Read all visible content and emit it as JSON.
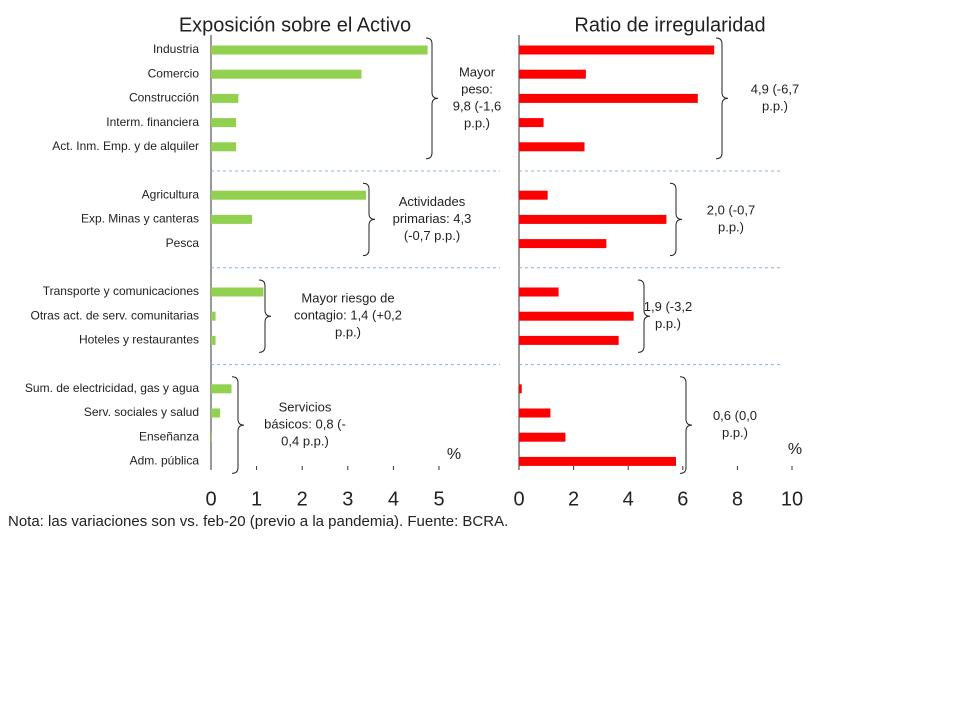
{
  "chart_data": [
    {
      "type": "bar",
      "orientation": "horizontal",
      "title": "Exposición sobre el Activo",
      "categories": [
        "Industria",
        "Comercio",
        "Construcción",
        "Interm. financiera",
        "Act. Inm. Emp. y de alquiler",
        "Agricultura",
        "Exp. Minas y canteras",
        "Pesca",
        "Transporte y comunicaciones",
        "Otras act. de serv. comunitarias",
        "Hoteles y restaurantes",
        "Sum. de electricidad, gas y agua",
        "Serv. sociales y salud",
        "Enseñanza",
        "Adm. pública"
      ],
      "values": [
        4.75,
        3.3,
        0.6,
        0.55,
        0.55,
        3.4,
        0.9,
        0,
        1.15,
        0.1,
        0.1,
        0.45,
        0.2,
        0.02,
        0
      ],
      "color": "#92d050",
      "xlim": [
        0,
        5
      ],
      "xticks": [
        0,
        1,
        2,
        3,
        4,
        5
      ],
      "unit": "%",
      "annotations": [
        [
          "Mayor",
          "peso:",
          "9,8 (-1,6",
          "p.p.)"
        ],
        [
          "Actividades",
          "primarias: 4,3",
          "(-0,7 p.p.)"
        ],
        [
          "Mayor riesgo de",
          "contagio: 1,4 (+0,2",
          "p.p.)"
        ],
        [
          "Servicios",
          "básicos: 0,8 (-",
          "0,4 p.p.)"
        ]
      ]
    },
    {
      "type": "bar",
      "orientation": "horizontal",
      "title": "Ratio de irregularidad",
      "values": [
        7.15,
        2.45,
        6.55,
        0.9,
        2.4,
        1.05,
        5.4,
        3.2,
        1.45,
        4.2,
        3.65,
        0.1,
        1.15,
        1.7,
        5.75
      ],
      "color": "#ff0000",
      "xlim": [
        0,
        10
      ],
      "xticks": [
        0,
        2,
        4,
        6,
        8,
        10
      ],
      "unit": "%",
      "annotations": [
        [
          "4,9 (-6,7",
          "p.p.)"
        ],
        [
          "2,0 (-0,7",
          "p.p.)"
        ],
        [
          "1,9 (-3,2",
          "p.p.)"
        ],
        [
          "0,6 (0,0",
          "p.p.)"
        ]
      ]
    }
  ],
  "note": "Nota: las variaciones son vs. feb-20 (previo a la pandemia). Fuente: BCRA."
}
